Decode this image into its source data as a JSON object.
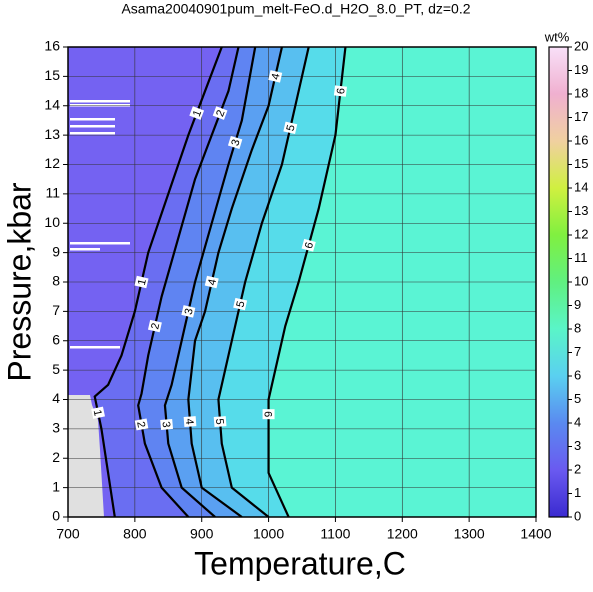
{
  "chart_data": {
    "type": "contour",
    "title": "Asama20040901pum_melt-FeO.d_H2O_8.0_PT, dz=0.2",
    "xlabel": "Temperature,C",
    "ylabel": "Pressure,kbar",
    "xlim": [
      700,
      1400
    ],
    "ylim": [
      0,
      16
    ],
    "xticks": [
      700,
      800,
      900,
      1000,
      1100,
      1200,
      1300,
      1400
    ],
    "yticks": [
      0,
      1,
      2,
      3,
      4,
      5,
      6,
      7,
      8,
      9,
      10,
      11,
      12,
      13,
      14,
      15,
      16
    ],
    "grid": true,
    "base_color": "#7462f2",
    "contours": [
      {
        "level": 1,
        "color": "#6a6ef2",
        "x": [
          770,
          760,
          750,
          740,
          760,
          780,
          800,
          820,
          850,
          880,
          905,
          930
        ],
        "y": [
          0,
          1.5,
          3,
          4.1,
          4.5,
          5.5,
          7,
          9,
          11,
          13,
          14.5,
          16
        ]
      },
      {
        "level": 2,
        "color": "#5f84f2",
        "x": [
          880,
          840,
          815,
          805,
          810,
          820,
          840,
          865,
          890,
          915,
          940,
          955
        ],
        "y": [
          0,
          1,
          2.5,
          3.8,
          4.2,
          5.5,
          7.5,
          9.5,
          11.5,
          13,
          14.5,
          16
        ]
      },
      {
        "level": 3,
        "color": "#5aa0f2",
        "x": [
          920,
          870,
          850,
          845,
          855,
          870,
          890,
          915,
          940,
          960,
          980
        ],
        "y": [
          0,
          1,
          2.5,
          3.8,
          4.5,
          6,
          8,
          10,
          12,
          13.5,
          16
        ]
      },
      {
        "level": 4,
        "color": "#58bff0",
        "x": [
          960,
          900,
          885,
          880,
          890,
          905,
          925,
          945,
          975,
          1000,
          1020
        ],
        "y": [
          0,
          1,
          2.5,
          4,
          6,
          7,
          9,
          10.5,
          12.5,
          14,
          16
        ]
      },
      {
        "level": 5,
        "color": "#56dcea",
        "x": [
          1000,
          945,
          930,
          925,
          935,
          950,
          965,
          990,
          1020,
          1045,
          1060
        ],
        "y": [
          0,
          1,
          2.5,
          4,
          5,
          6.5,
          8,
          10,
          12,
          14.5,
          16
        ]
      },
      {
        "level": 6,
        "color": "#5af4d4",
        "x": [
          1030,
          1020,
          1000,
          1000,
          1000,
          1010,
          1025,
          1045,
          1075,
          1100,
          1115
        ],
        "y": [
          0,
          0.5,
          1.5,
          3,
          4,
          5,
          6.5,
          8,
          10.5,
          13,
          16
        ]
      }
    ],
    "colorbar": {
      "label": "wt%",
      "lim": [
        0,
        20
      ],
      "ticks": [
        0,
        1,
        2,
        3,
        4,
        5,
        6,
        7,
        8,
        9,
        10,
        11,
        12,
        13,
        14,
        15,
        16,
        17,
        18,
        19,
        20
      ],
      "colors": [
        "#3a2ad0",
        "#6a5af0",
        "#5a8af0",
        "#5ad0f0",
        "#5af5c8",
        "#60f080",
        "#80f040",
        "#d0f040",
        "#f0d0a0",
        "#f0b0d0",
        "#f8e0f8"
      ]
    }
  }
}
